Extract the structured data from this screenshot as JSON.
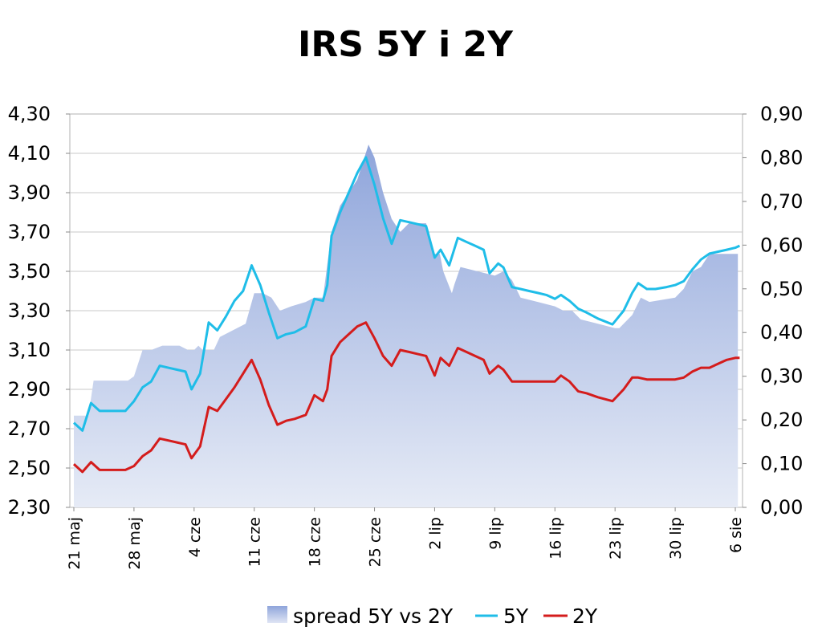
{
  "chart_data": {
    "type": "line",
    "title": "IRS 5Y i 2Y",
    "xlabel": "",
    "ylabel": "",
    "y_left": {
      "min": 2.3,
      "max": 4.3,
      "step": 0.2,
      "ticks": [
        "2,30",
        "2,50",
        "2,70",
        "2,90",
        "3,10",
        "3,30",
        "3,50",
        "3,70",
        "3,90",
        "4,10",
        "4,30"
      ]
    },
    "y_right": {
      "min": 0,
      "max": 0.9,
      "step": 0.1,
      "ticks": [
        "0,00",
        "0,10",
        "0,20",
        "0,30",
        "0,40",
        "0,50",
        "0,60",
        "0,70",
        "0,80",
        "0,90"
      ]
    },
    "x_ticks": [
      {
        "day": 0,
        "label": "21 maj"
      },
      {
        "day": 7,
        "label": "28 maj"
      },
      {
        "day": 14,
        "label": "4 cze"
      },
      {
        "day": 21,
        "label": "11 cze"
      },
      {
        "day": 28,
        "label": "18 cze"
      },
      {
        "day": 35,
        "label": "25 cze"
      },
      {
        "day": 42,
        "label": "2 lip"
      },
      {
        "day": 49,
        "label": "9 lip"
      },
      {
        "day": 56,
        "label": "16 lip"
      },
      {
        "day": 63,
        "label": "23 lip"
      },
      {
        "day": 70,
        "label": "30 lip"
      },
      {
        "day": 77,
        "label": "6 sie"
      }
    ],
    "grid": true,
    "legend_position": "bottom",
    "series": [
      {
        "name": "spread 5Y vs 2Y",
        "kind": "area",
        "axis": "right",
        "color": "#b8c6e8",
        "points": [
          [
            0,
            0.21
          ],
          [
            0.5,
            0.21
          ],
          [
            1.7,
            0.21
          ],
          [
            2.3,
            0.29
          ],
          [
            3,
            0.29
          ],
          [
            5,
            0.29
          ],
          [
            6.3,
            0.29
          ],
          [
            7,
            0.3
          ],
          [
            8,
            0.36
          ],
          [
            9,
            0.36
          ],
          [
            10.3,
            0.37
          ],
          [
            12.3,
            0.37
          ],
          [
            13.3,
            0.36
          ],
          [
            14,
            0.36
          ],
          [
            14.5,
            0.37
          ],
          [
            15,
            0.36
          ],
          [
            16.3,
            0.36
          ],
          [
            17,
            0.39
          ],
          [
            18,
            0.4
          ],
          [
            20,
            0.42
          ],
          [
            21,
            0.49
          ],
          [
            22,
            0.49
          ],
          [
            23,
            0.48
          ],
          [
            24,
            0.45
          ],
          [
            25.3,
            0.46
          ],
          [
            27,
            0.47
          ],
          [
            28,
            0.48
          ],
          [
            29,
            0.48
          ],
          [
            30,
            0.63
          ],
          [
            31,
            0.69
          ],
          [
            32,
            0.72
          ],
          [
            33,
            0.75
          ],
          [
            34.3,
            0.83
          ],
          [
            35,
            0.8
          ],
          [
            36,
            0.72
          ],
          [
            37,
            0.66
          ],
          [
            38,
            0.63
          ],
          [
            39,
            0.65
          ],
          [
            40.3,
            0.65
          ],
          [
            41,
            0.65
          ],
          [
            42,
            0.58
          ],
          [
            42.6,
            0.58
          ],
          [
            43,
            0.54
          ],
          [
            44,
            0.49
          ],
          [
            44.3,
            0.51
          ],
          [
            45,
            0.55
          ],
          [
            49,
            0.53
          ],
          [
            50,
            0.54
          ],
          [
            51,
            0.52
          ],
          [
            52,
            0.48
          ],
          [
            54,
            0.47
          ],
          [
            56,
            0.46
          ],
          [
            57,
            0.45
          ],
          [
            58,
            0.45
          ],
          [
            59,
            0.43
          ],
          [
            61,
            0.42
          ],
          [
            63,
            0.41
          ],
          [
            63.5,
            0.41
          ],
          [
            64,
            0.42
          ],
          [
            65,
            0.44
          ],
          [
            66,
            0.48
          ],
          [
            67,
            0.47
          ],
          [
            70,
            0.48
          ],
          [
            71,
            0.5
          ],
          [
            72,
            0.54
          ],
          [
            73,
            0.55
          ],
          [
            74,
            0.58
          ],
          [
            75,
            0.58
          ],
          [
            76,
            0.58
          ],
          [
            77,
            0.58
          ],
          [
            77.3,
            0.58
          ]
        ]
      },
      {
        "name": "5Y",
        "kind": "line",
        "axis": "left",
        "color": "#1fbde8",
        "points": [
          [
            0,
            2.73
          ],
          [
            1,
            2.69
          ],
          [
            2,
            2.83
          ],
          [
            3,
            2.79
          ],
          [
            4,
            2.79
          ],
          [
            5,
            2.79
          ],
          [
            6,
            2.79
          ],
          [
            7,
            2.84
          ],
          [
            8,
            2.91
          ],
          [
            9,
            2.94
          ],
          [
            10,
            3.02
          ],
          [
            11,
            3.01
          ],
          [
            12,
            3
          ],
          [
            13,
            2.99
          ],
          [
            13.7,
            2.9
          ],
          [
            14.7,
            2.98
          ],
          [
            15.7,
            3.24
          ],
          [
            16.7,
            3.2
          ],
          [
            17.7,
            3.27
          ],
          [
            18.7,
            3.35
          ],
          [
            19.7,
            3.4
          ],
          [
            20.7,
            3.53
          ],
          [
            21.7,
            3.43
          ],
          [
            22.7,
            3.29
          ],
          [
            23.7,
            3.16
          ],
          [
            24.7,
            3.18
          ],
          [
            25.7,
            3.19
          ],
          [
            27,
            3.22
          ],
          [
            28,
            3.36
          ],
          [
            29,
            3.35
          ],
          [
            29.5,
            3.43
          ],
          [
            30,
            3.68
          ],
          [
            31,
            3.8
          ],
          [
            32,
            3.9
          ],
          [
            33,
            4
          ],
          [
            34,
            4.08
          ],
          [
            35,
            3.94
          ],
          [
            36,
            3.77
          ],
          [
            37,
            3.64
          ],
          [
            38,
            3.76
          ],
          [
            39,
            3.75
          ],
          [
            40,
            3.74
          ],
          [
            41,
            3.73
          ],
          [
            42,
            3.57
          ],
          [
            42.7,
            3.61
          ],
          [
            43.7,
            3.53
          ],
          [
            44.7,
            3.67
          ],
          [
            45.7,
            3.65
          ],
          [
            46.7,
            3.63
          ],
          [
            47.7,
            3.61
          ],
          [
            48.4,
            3.49
          ],
          [
            49.4,
            3.54
          ],
          [
            50,
            3.52
          ],
          [
            51,
            3.42
          ],
          [
            52,
            3.41
          ],
          [
            53,
            3.4
          ],
          [
            54,
            3.39
          ],
          [
            55,
            3.38
          ],
          [
            56,
            3.36
          ],
          [
            56.7,
            3.38
          ],
          [
            57.7,
            3.35
          ],
          [
            58.7,
            3.31
          ],
          [
            59.7,
            3.29
          ],
          [
            61,
            3.26
          ],
          [
            62.7,
            3.23
          ],
          [
            64,
            3.3
          ],
          [
            65,
            3.39
          ],
          [
            65.7,
            3.44
          ],
          [
            66.7,
            3.41
          ],
          [
            67.7,
            3.41
          ],
          [
            69,
            3.42
          ],
          [
            70,
            3.43
          ],
          [
            71,
            3.45
          ],
          [
            72,
            3.51
          ],
          [
            73,
            3.56
          ],
          [
            74,
            3.59
          ],
          [
            75,
            3.6
          ],
          [
            76,
            3.61
          ],
          [
            77,
            3.62
          ],
          [
            77.5,
            3.63
          ]
        ]
      },
      {
        "name": "2Y",
        "kind": "line",
        "axis": "left",
        "color": "#d41c1c",
        "points": [
          [
            0,
            2.52
          ],
          [
            1,
            2.48
          ],
          [
            2,
            2.53
          ],
          [
            3,
            2.49
          ],
          [
            4,
            2.49
          ],
          [
            5,
            2.49
          ],
          [
            6,
            2.49
          ],
          [
            7,
            2.51
          ],
          [
            8,
            2.56
          ],
          [
            9,
            2.59
          ],
          [
            10,
            2.65
          ],
          [
            11,
            2.64
          ],
          [
            12,
            2.63
          ],
          [
            13,
            2.62
          ],
          [
            13.7,
            2.55
          ],
          [
            14.7,
            2.61
          ],
          [
            15.7,
            2.81
          ],
          [
            16.7,
            2.79
          ],
          [
            17.7,
            2.85
          ],
          [
            18.7,
            2.91
          ],
          [
            19.7,
            2.98
          ],
          [
            20.7,
            3.05
          ],
          [
            21.7,
            2.95
          ],
          [
            22.7,
            2.82
          ],
          [
            23.7,
            2.72
          ],
          [
            24.7,
            2.74
          ],
          [
            25.7,
            2.75
          ],
          [
            27,
            2.77
          ],
          [
            28,
            2.87
          ],
          [
            29,
            2.84
          ],
          [
            29.5,
            2.9
          ],
          [
            30,
            3.07
          ],
          [
            31,
            3.14
          ],
          [
            32,
            3.18
          ],
          [
            33,
            3.22
          ],
          [
            34,
            3.24
          ],
          [
            35,
            3.16
          ],
          [
            36,
            3.07
          ],
          [
            37,
            3.02
          ],
          [
            38,
            3.1
          ],
          [
            39,
            3.09
          ],
          [
            40,
            3.08
          ],
          [
            41,
            3.07
          ],
          [
            42,
            2.97
          ],
          [
            42.7,
            3.06
          ],
          [
            43.7,
            3.02
          ],
          [
            44.7,
            3.11
          ],
          [
            45.7,
            3.09
          ],
          [
            46.7,
            3.07
          ],
          [
            47.7,
            3.05
          ],
          [
            48.4,
            2.98
          ],
          [
            49.4,
            3.02
          ],
          [
            50,
            3
          ],
          [
            51,
            2.94
          ],
          [
            52,
            2.94
          ],
          [
            53,
            2.94
          ],
          [
            54,
            2.94
          ],
          [
            55,
            2.94
          ],
          [
            56,
            2.94
          ],
          [
            56.7,
            2.97
          ],
          [
            57.7,
            2.94
          ],
          [
            58.7,
            2.89
          ],
          [
            59.7,
            2.88
          ],
          [
            61,
            2.86
          ],
          [
            62.7,
            2.84
          ],
          [
            64,
            2.9
          ],
          [
            65,
            2.96
          ],
          [
            65.7,
            2.96
          ],
          [
            66.7,
            2.95
          ],
          [
            67.7,
            2.95
          ],
          [
            69,
            2.95
          ],
          [
            70,
            2.95
          ],
          [
            71,
            2.96
          ],
          [
            72,
            2.99
          ],
          [
            73,
            3.01
          ],
          [
            74,
            3.01
          ],
          [
            75,
            3.03
          ],
          [
            76,
            3.05
          ],
          [
            77,
            3.06
          ],
          [
            77.5,
            3.06
          ]
        ]
      }
    ]
  }
}
